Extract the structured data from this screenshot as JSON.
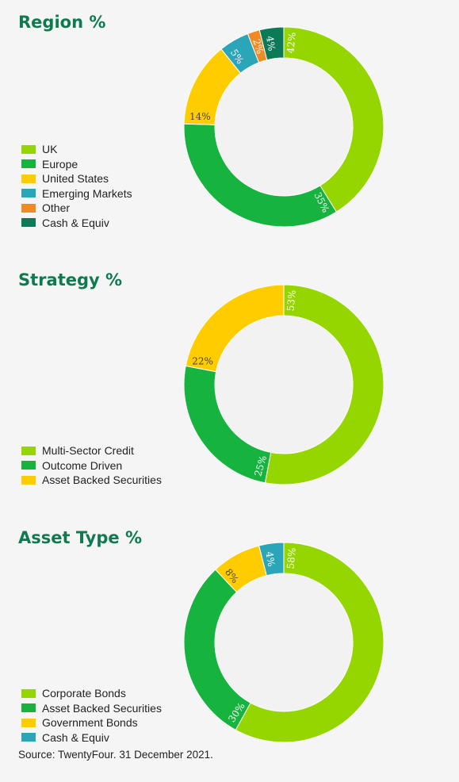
{
  "chart_data": [
    {
      "type": "pie",
      "title": "Region %",
      "categories": [
        "UK",
        "Europe",
        "United States",
        "Emerging Markets",
        "Other",
        "Cash & Equiv"
      ],
      "values": [
        42,
        35,
        14,
        5,
        2,
        4
      ],
      "labels": [
        "42%",
        "35%",
        "14%",
        "5%",
        "2%",
        "4%"
      ],
      "colors": [
        "#95d600",
        "#16b33f",
        "#ffcc00",
        "#2aa6b8",
        "#f08a24",
        "#0d7a57"
      ],
      "label_colors": [
        "#ffffff",
        "#ffffff",
        "#444444",
        "#ffffff",
        "#ffffff",
        "#ffffff"
      ],
      "legend_position": "left"
    },
    {
      "type": "pie",
      "title": "Strategy %",
      "categories": [
        "Multi-Sector Credit",
        "Outcome Driven",
        "Asset Backed Securities"
      ],
      "values": [
        53,
        25,
        22
      ],
      "labels": [
        "53%",
        "25%",
        "22%"
      ],
      "colors": [
        "#95d600",
        "#16b33f",
        "#ffcc00"
      ],
      "label_colors": [
        "#ffffff",
        "#ffffff",
        "#444444"
      ],
      "legend_position": "left"
    },
    {
      "type": "pie",
      "title": "Asset Type %",
      "categories": [
        "Corporate Bonds",
        "Asset Backed Securities",
        "Government Bonds",
        "Cash & Equiv"
      ],
      "values": [
        58,
        30,
        8,
        4
      ],
      "labels": [
        "58%",
        "30%",
        "8%",
        "4%"
      ],
      "colors": [
        "#95d600",
        "#16b33f",
        "#ffcc00",
        "#2aa6b8"
      ],
      "label_colors": [
        "#ffffff",
        "#ffffff",
        "#444444",
        "#ffffff"
      ],
      "legend_position": "left"
    }
  ],
  "source": "Source: TwentyFour. 31 December 2021."
}
